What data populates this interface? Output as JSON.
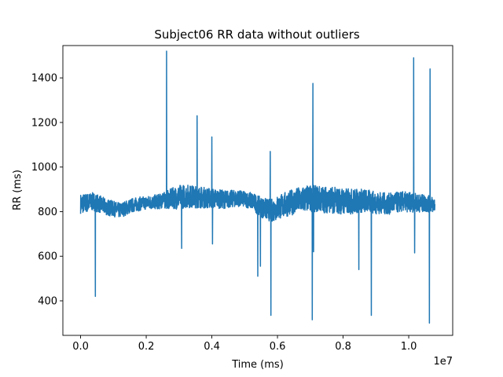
{
  "chart_data": {
    "type": "line",
    "title": "Subject06 RR data without outliers",
    "xlabel": "Time (ms)",
    "ylabel": "RR (ms)",
    "x_offset_label": "1e7",
    "xlim": [
      -0.054,
      1.134
    ],
    "ylim": [
      245,
      1545
    ],
    "x_ticks": [
      0.0,
      0.2,
      0.4,
      0.6,
      0.8,
      1.0
    ],
    "x_tick_labels": [
      "0.0",
      "0.2",
      "0.4",
      "0.6",
      "0.8",
      "1.0"
    ],
    "y_ticks": [
      400,
      600,
      800,
      1000,
      1200,
      1400
    ],
    "y_tick_labels": [
      "400",
      "600",
      "800",
      "1000",
      "1200",
      "1400"
    ],
    "grid": false,
    "legend": "none",
    "series_color": "#1f77b4",
    "baseline": [
      [
        0.0,
        835
      ],
      [
        0.04,
        845
      ],
      [
        0.08,
        820
      ],
      [
        0.12,
        805
      ],
      [
        0.16,
        830
      ],
      [
        0.2,
        840
      ],
      [
        0.24,
        845
      ],
      [
        0.28,
        860
      ],
      [
        0.32,
        870
      ],
      [
        0.36,
        865
      ],
      [
        0.4,
        860
      ],
      [
        0.44,
        855
      ],
      [
        0.48,
        860
      ],
      [
        0.52,
        850
      ],
      [
        0.55,
        820
      ],
      [
        0.58,
        805
      ],
      [
        0.62,
        830
      ],
      [
        0.66,
        850
      ],
      [
        0.7,
        860
      ],
      [
        0.74,
        855
      ],
      [
        0.78,
        850
      ],
      [
        0.82,
        845
      ],
      [
        0.86,
        850
      ],
      [
        0.9,
        840
      ],
      [
        0.94,
        835
      ],
      [
        0.98,
        845
      ],
      [
        1.02,
        840
      ],
      [
        1.06,
        835
      ],
      [
        1.08,
        830
      ]
    ],
    "noise_amplitude": [
      [
        0.0,
        45
      ],
      [
        0.1,
        35
      ],
      [
        0.2,
        30
      ],
      [
        0.25,
        35
      ],
      [
        0.3,
        55
      ],
      [
        0.4,
        45
      ],
      [
        0.5,
        35
      ],
      [
        0.55,
        45
      ],
      [
        0.6,
        55
      ],
      [
        0.7,
        60
      ],
      [
        0.8,
        60
      ],
      [
        0.9,
        50
      ],
      [
        1.0,
        45
      ],
      [
        1.08,
        35
      ]
    ],
    "spikes": [
      [
        0.045,
        420
      ],
      [
        0.25,
        880
      ],
      [
        0.262,
        1520
      ],
      [
        0.308,
        635
      ],
      [
        0.355,
        1230
      ],
      [
        0.4,
        1135
      ],
      [
        0.402,
        655
      ],
      [
        0.54,
        510
      ],
      [
        0.548,
        555
      ],
      [
        0.578,
        1070
      ],
      [
        0.58,
        335
      ],
      [
        0.708,
        1375
      ],
      [
        0.706,
        315
      ],
      [
        0.71,
        620
      ],
      [
        0.848,
        540
      ],
      [
        0.886,
        335
      ],
      [
        1.015,
        1490
      ],
      [
        1.018,
        615
      ],
      [
        1.065,
        1440
      ],
      [
        1.063,
        300
      ]
    ]
  }
}
